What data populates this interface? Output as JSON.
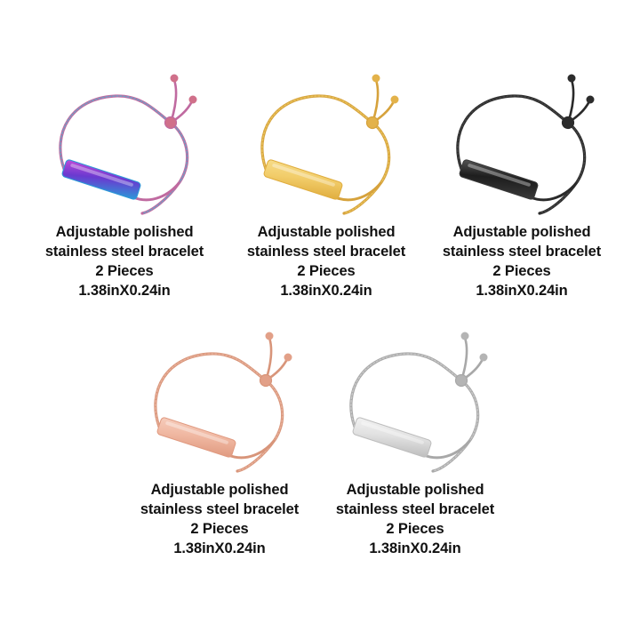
{
  "products": [
    {
      "finish": "rainbow",
      "colors": {
        "chain_a": "#c06aa0",
        "chain_b": "#6aa4c8",
        "bar_a": "#6a3ad0",
        "bar_b": "#2a9ad8",
        "bar_c": "#c24ad8",
        "bead": "#d0708a"
      },
      "caption": [
        "Adjustable polished",
        "stainless steel bracelet",
        "2 Pieces",
        "1.38inX0.24in"
      ]
    },
    {
      "finish": "gold",
      "colors": {
        "chain_a": "#d6a23c",
        "chain_b": "#e8c25a",
        "bar_a": "#f2cd6a",
        "bar_b": "#e0ad3e",
        "bar_c": "#f6dc8a",
        "bead": "#e3b24a"
      },
      "caption": [
        "Adjustable polished",
        "stainless steel bracelet",
        "2 Pieces",
        "1.38inX0.24in"
      ]
    },
    {
      "finish": "black",
      "colors": {
        "chain_a": "#2a2a2a",
        "chain_b": "#444444",
        "bar_a": "#1e1e1e",
        "bar_b": "#3a3a3a",
        "bar_c": "#555555",
        "bead": "#2c2c2c"
      },
      "caption": [
        "Adjustable polished",
        "stainless steel bracelet",
        "2 Pieces",
        "1.38inX0.24in"
      ]
    },
    {
      "finish": "rose-gold",
      "colors": {
        "chain_a": "#d8957a",
        "chain_b": "#e8b09a",
        "bar_a": "#f0b8a2",
        "bar_b": "#e09a80",
        "bar_c": "#f6cdbd",
        "bead": "#e2a088"
      },
      "caption": [
        "Adjustable polished",
        "stainless steel bracelet",
        "2 Pieces",
        "1.38inX0.24in"
      ]
    },
    {
      "finish": "silver",
      "colors": {
        "chain_a": "#a8a8a8",
        "chain_b": "#c8c8c8",
        "bar_a": "#e2e2e2",
        "bar_b": "#bdbdbd",
        "bar_c": "#f2f2f2",
        "bead": "#b4b4b4"
      },
      "caption": [
        "Adjustable polished",
        "stainless steel bracelet",
        "2 Pieces",
        "1.38inX0.24in"
      ]
    }
  ]
}
